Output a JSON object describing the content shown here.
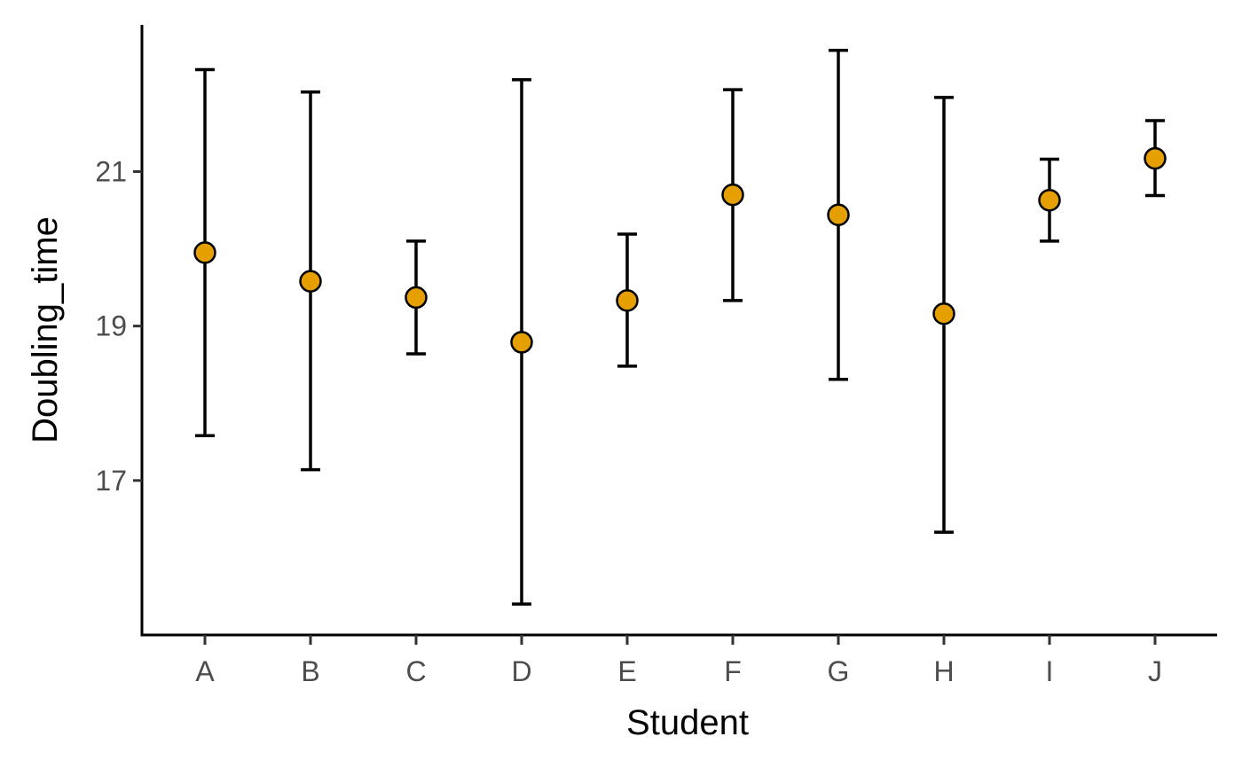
{
  "chart_data": {
    "type": "scatter",
    "xlabel": "Student",
    "ylabel": "Doubling_time",
    "categories": [
      "A",
      "B",
      "C",
      "D",
      "E",
      "F",
      "G",
      "H",
      "I",
      "J"
    ],
    "series": [
      {
        "values": [
          19.95,
          19.58,
          19.37,
          18.79,
          19.33,
          20.7,
          20.44,
          19.16,
          20.63,
          21.17
        ],
        "lower": [
          17.58,
          17.14,
          18.64,
          15.4,
          18.48,
          19.33,
          18.31,
          16.33,
          20.1,
          20.69
        ],
        "upper": [
          22.32,
          22.03,
          20.1,
          22.19,
          20.19,
          22.06,
          22.57,
          21.96,
          21.16,
          21.66
        ]
      }
    ],
    "yticks": [
      17,
      19,
      21
    ],
    "ylim": [
      15.0,
      22.9
    ],
    "grid": false,
    "legend": "none",
    "point_fill": "#E69F00",
    "point_stroke": "#000000",
    "line_color": "#000000"
  }
}
